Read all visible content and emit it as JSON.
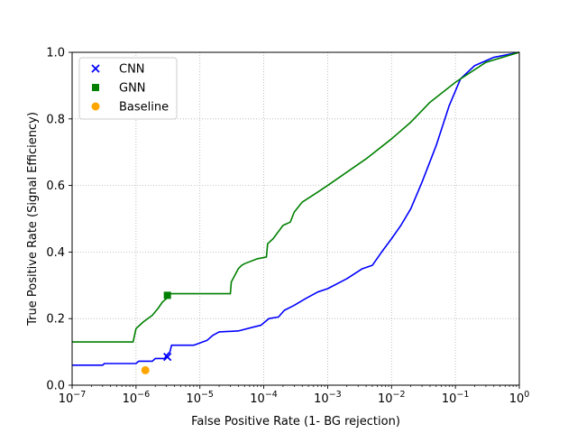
{
  "chart_data": {
    "type": "line",
    "title": "",
    "xlabel": "False Positive Rate (1- BG rejection)",
    "ylabel": "True Positive Rate (Signal Efficiency)",
    "x_scale": "log",
    "xlim": [
      1e-07,
      1
    ],
    "ylim": [
      0,
      1
    ],
    "grid": true,
    "legend_position": "top-left",
    "x_ticks": [
      {
        "base": "10",
        "exp": "−7"
      },
      {
        "base": "10",
        "exp": "−6"
      },
      {
        "base": "10",
        "exp": "−5"
      },
      {
        "base": "10",
        "exp": "−4"
      },
      {
        "base": "10",
        "exp": "−3"
      },
      {
        "base": "10",
        "exp": "−2"
      },
      {
        "base": "10",
        "exp": "−1"
      },
      {
        "base": "10",
        "exp": "0"
      }
    ],
    "y_ticks": [
      "0.0",
      "0.2",
      "0.4",
      "0.6",
      "0.8",
      "1.0"
    ],
    "y_tick_values": [
      0,
      0.2,
      0.4,
      0.6,
      0.8,
      1.0
    ],
    "series": [
      {
        "name": "CNN",
        "color": "#0000ff",
        "marker": "x",
        "x": [
          1e-07,
          3e-07,
          3.2e-07,
          1e-06,
          1.1e-06,
          1.8e-06,
          2e-06,
          2.8e-06,
          3e-06,
          3.4e-06,
          3.6e-06,
          8e-06,
          1.3e-05,
          1.6e-05,
          2e-05,
          4e-05,
          7e-05,
          9e-05,
          0.00012,
          0.00017,
          0.00021,
          0.0003,
          0.00045,
          0.0007,
          0.001,
          0.002,
          0.0035,
          0.005,
          0.007,
          0.01,
          0.014,
          0.02,
          0.03,
          0.05,
          0.08,
          0.12,
          0.2,
          0.4,
          1
        ],
        "y": [
          0.06,
          0.06,
          0.065,
          0.065,
          0.072,
          0.072,
          0.08,
          0.08,
          0.09,
          0.1,
          0.12,
          0.12,
          0.135,
          0.15,
          0.16,
          0.163,
          0.175,
          0.18,
          0.2,
          0.205,
          0.225,
          0.24,
          0.26,
          0.28,
          0.29,
          0.32,
          0.35,
          0.36,
          0.4,
          0.44,
          0.48,
          0.53,
          0.61,
          0.72,
          0.84,
          0.92,
          0.96,
          0.985,
          1.0
        ]
      },
      {
        "name": "GNN",
        "color": "#008000",
        "marker": "square",
        "x": [
          1e-07,
          9e-07,
          1e-06,
          1.3e-06,
          1.8e-06,
          2.2e-06,
          2.6e-06,
          3e-06,
          3.2e-06,
          3e-05,
          3.1e-05,
          4e-05,
          4.5e-05,
          5e-05,
          8e-05,
          0.00011,
          0.000115,
          0.00014,
          0.0002,
          0.00026,
          0.0003,
          0.0004,
          0.0007,
          0.001,
          0.002,
          0.004,
          0.01,
          0.02,
          0.04,
          0.1,
          0.3,
          1
        ],
        "y": [
          0.13,
          0.13,
          0.17,
          0.19,
          0.21,
          0.23,
          0.25,
          0.26,
          0.275,
          0.275,
          0.31,
          0.35,
          0.36,
          0.365,
          0.38,
          0.385,
          0.425,
          0.44,
          0.48,
          0.49,
          0.52,
          0.55,
          0.58,
          0.6,
          0.64,
          0.68,
          0.74,
          0.79,
          0.85,
          0.91,
          0.97,
          1.0
        ]
      }
    ],
    "points": [
      {
        "name": "CNN",
        "x": 3.1e-06,
        "y": 0.085,
        "marker": "x",
        "color": "#0000ff"
      },
      {
        "name": "GNN",
        "x": 3.1e-06,
        "y": 0.27,
        "marker": "square",
        "color": "#008000"
      },
      {
        "name": "Baseline",
        "x": 1.4e-06,
        "y": 0.045,
        "marker": "circle",
        "color": "#ffa500"
      }
    ],
    "legend": [
      {
        "label": "CNN",
        "marker": "x",
        "color": "#0000ff"
      },
      {
        "label": "GNN",
        "marker": "square",
        "color": "#008000"
      },
      {
        "label": "Baseline",
        "marker": "circle",
        "color": "#ffa500"
      }
    ]
  }
}
